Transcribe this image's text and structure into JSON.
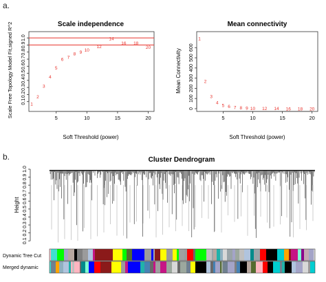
{
  "panel_labels": {
    "a": "a.",
    "b": "b."
  },
  "colors": {
    "cutoff_line": "#e8302a",
    "point_label": "#e8302a",
    "axis": "#333333",
    "dendrogram": "#111111"
  },
  "chart_data": [
    {
      "type": "scatter",
      "title": "Scale independence",
      "xlabel": "Soft Threshold (power)",
      "ylabel": "Scale Free Topology Model Fit,signed R^2",
      "xlim": [
        1,
        20.5
      ],
      "ylim": [
        0,
        1.05
      ],
      "xticks": [
        "5",
        "10",
        "15",
        "20"
      ],
      "yticks": [
        "0.1",
        "0.2",
        "0.3",
        "0.4",
        "0.5",
        "0.6",
        "0.7",
        "0.8",
        "0.9",
        "1.0"
      ],
      "points": [
        {
          "label": "1",
          "x": 1,
          "y": 0.07
        },
        {
          "label": "2",
          "x": 2,
          "y": 0.17
        },
        {
          "label": "3",
          "x": 3,
          "y": 0.32
        },
        {
          "label": "4",
          "x": 4,
          "y": 0.45
        },
        {
          "label": "5",
          "x": 5,
          "y": 0.58
        },
        {
          "label": "6",
          "x": 6,
          "y": 0.7
        },
        {
          "label": "7",
          "x": 7,
          "y": 0.73
        },
        {
          "label": "8",
          "x": 8,
          "y": 0.78
        },
        {
          "label": "9",
          "x": 9,
          "y": 0.8
        },
        {
          "label": "10",
          "x": 10,
          "y": 0.83
        },
        {
          "label": "12",
          "x": 12,
          "y": 0.88
        },
        {
          "label": "14",
          "x": 14,
          "y": 0.99
        },
        {
          "label": "16",
          "x": 16,
          "y": 0.93
        },
        {
          "label": "18",
          "x": 18,
          "y": 0.93
        },
        {
          "label": "20",
          "x": 20,
          "y": 0.87
        }
      ],
      "hlines": [
        0.9,
        1.0
      ],
      "grid": false
    },
    {
      "type": "scatter",
      "title": "Mean connectivity",
      "xlabel": "Soft Threshold (power)",
      "ylabel": "Mean Connectivity",
      "xlim": [
        1,
        20.5
      ],
      "ylim": [
        0,
        730
      ],
      "xticks": [
        "5",
        "10",
        "15",
        "20"
      ],
      "yticks": [
        "0",
        "100",
        "200",
        "300",
        "400",
        "500",
        "600"
      ],
      "points": [
        {
          "label": "1",
          "x": 1,
          "y": 690
        },
        {
          "label": "2",
          "x": 2,
          "y": 270
        },
        {
          "label": "3",
          "x": 3,
          "y": 120
        },
        {
          "label": "4",
          "x": 4,
          "y": 60
        },
        {
          "label": "5",
          "x": 5,
          "y": 35
        },
        {
          "label": "6",
          "x": 6,
          "y": 22
        },
        {
          "label": "7",
          "x": 7,
          "y": 15
        },
        {
          "label": "8",
          "x": 8,
          "y": 10
        },
        {
          "label": "9",
          "x": 9,
          "y": 7
        },
        {
          "label": "10",
          "x": 10,
          "y": 5
        },
        {
          "label": "12",
          "x": 12,
          "y": 3
        },
        {
          "label": "14",
          "x": 14,
          "y": 2
        },
        {
          "label": "16",
          "x": 16,
          "y": 1
        },
        {
          "label": "18",
          "x": 18,
          "y": 1
        },
        {
          "label": "20",
          "x": 20,
          "y": 1
        }
      ],
      "grid": false
    },
    {
      "type": "dendrogram",
      "title": "Cluster Dendrogram",
      "ylabel": "Height",
      "ylim": [
        0.05,
        1.0
      ],
      "yticks": [
        "0.1",
        "0.2",
        "0.3",
        "0.4",
        "0.5",
        "0.6",
        "0.7",
        "0.8",
        "0.9",
        "1.0"
      ],
      "color_rows": [
        {
          "name": "Dynamic Tree Cut"
        },
        {
          "name": "Merged dynamic"
        }
      ],
      "module_colors": [
        "#9aa4a8",
        "#b0a0b8",
        "#a8b4ac",
        "#8fb0c0",
        "#c4a6b4",
        "#9ca89e",
        "#a4a4c8",
        "#b8a8a0",
        "#ffb6c1",
        "#8b1a1a",
        "#ffff00",
        "#a0a0a0",
        "#0000ff",
        "#d8d8d8",
        "#808080",
        "#7fffd4",
        "#c0c0c0",
        "#20b2aa",
        "#9b9b9b",
        "#00ff00",
        "#008b8b",
        "#a9a9a9",
        "#40e0d0",
        "#000000",
        "#708090",
        "#ff0000",
        "#00ced1",
        "#ffa500",
        "#8b008b",
        "#556b2f",
        "#c71585",
        "#4682b4",
        "#696969",
        "#b0c4de"
      ]
    }
  ]
}
